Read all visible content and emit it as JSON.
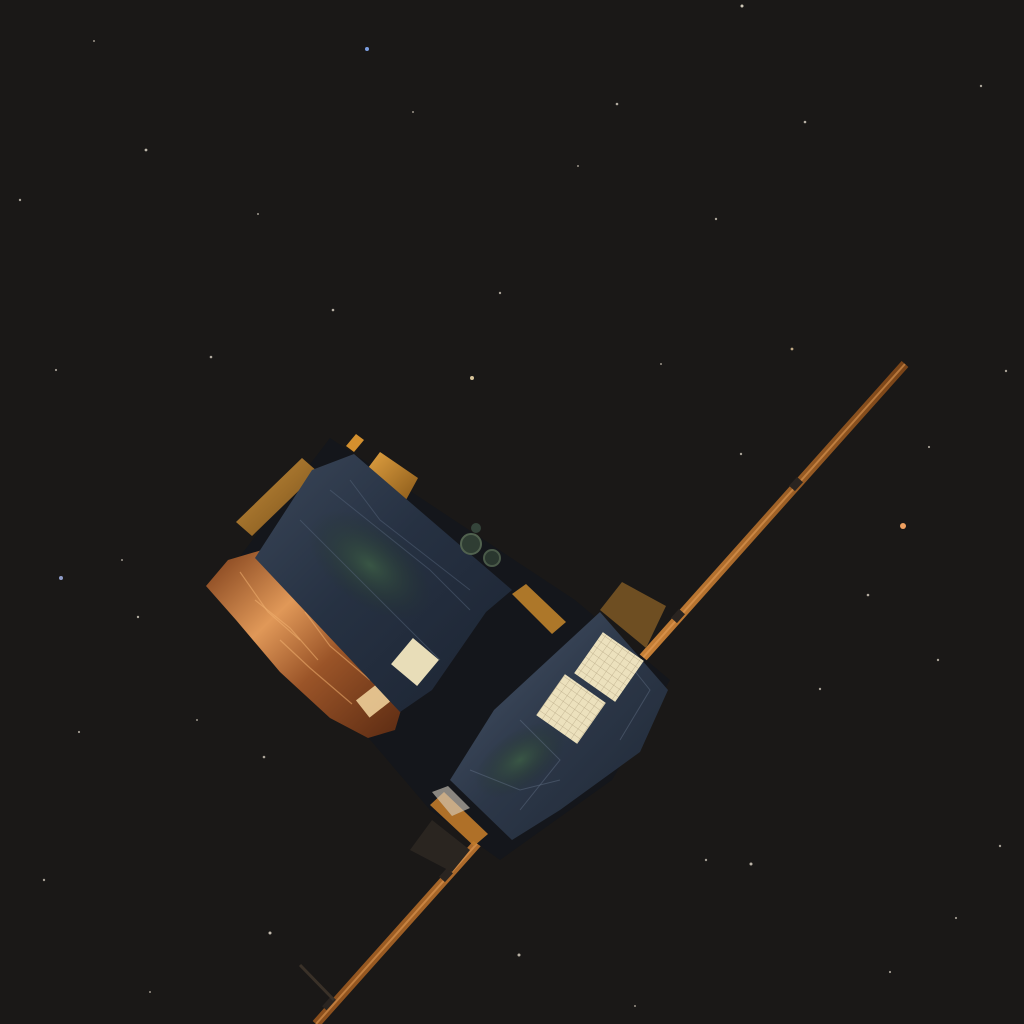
{
  "scene": {
    "subject": "spacecraft",
    "setting": "starfield",
    "colors": {
      "space": "#1a1817",
      "mli_blanket": "#2a3545",
      "mli_highlight": "#4a5668",
      "gold_foil": "#c8782a",
      "copper_foil": "#d08040",
      "boom": "#b8702e",
      "radiator_panel": "#e8ddb8",
      "solar_green": "#2f4a3a"
    }
  }
}
